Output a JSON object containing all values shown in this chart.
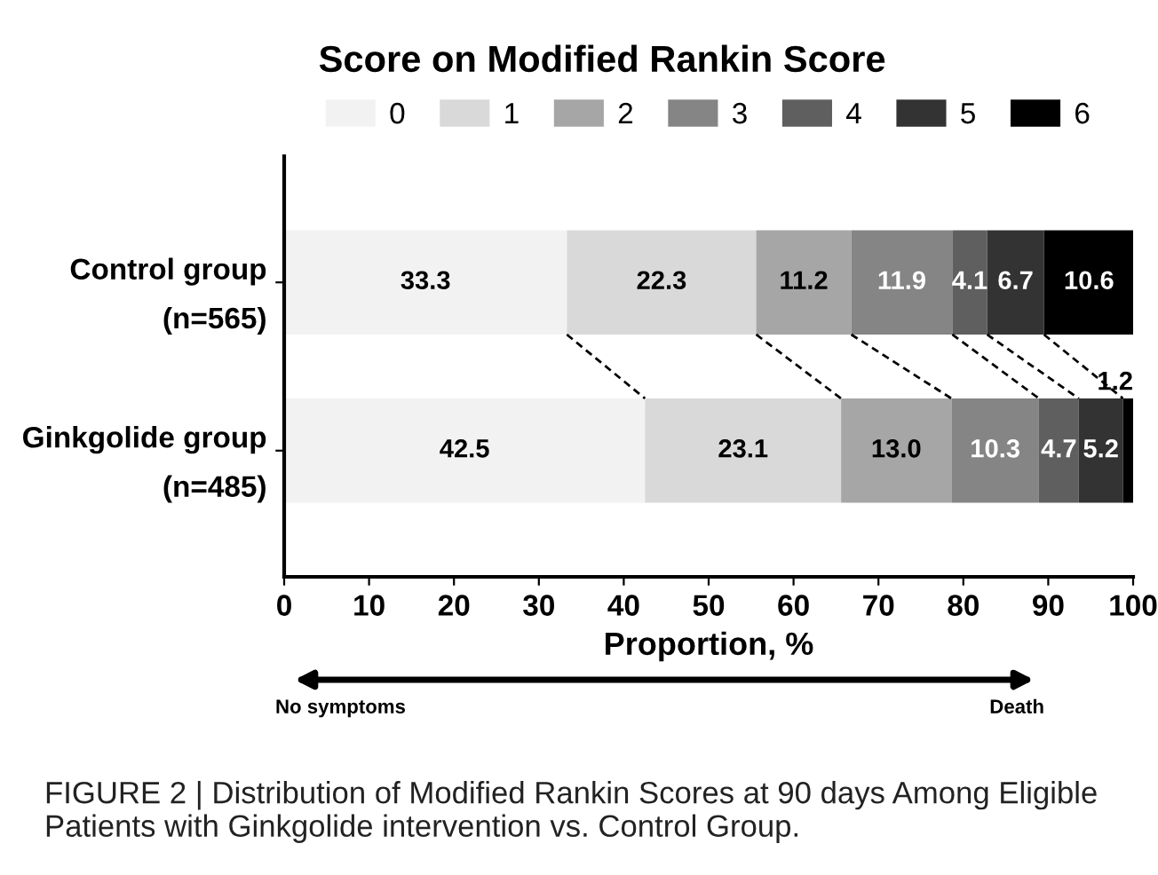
{
  "chart_data": {
    "type": "bar",
    "orientation": "horizontal",
    "stacked": true,
    "title": "Score on Modified Rankin Score",
    "xlabel": "Proportion, %",
    "categories": [
      "Control group\n(n=565)",
      "Ginkgolide group\n(n=485)"
    ],
    "series": [
      {
        "name": "0",
        "color": "#f2f2f2",
        "values": [
          33.3,
          42.5
        ],
        "value_labels": [
          "33.3",
          "42.5"
        ]
      },
      {
        "name": "1",
        "color": "#d9d9d9",
        "values": [
          22.3,
          23.1
        ],
        "value_labels": [
          "22.3",
          "23.1"
        ]
      },
      {
        "name": "2",
        "color": "#a6a6a6",
        "values": [
          11.2,
          13.0
        ],
        "value_labels": [
          "11.2",
          "13.0"
        ]
      },
      {
        "name": "3",
        "color": "#858585",
        "values": [
          11.9,
          10.3
        ],
        "value_labels": [
          "11.9",
          "10.3"
        ]
      },
      {
        "name": "4",
        "color": "#5f5f5f",
        "values": [
          4.1,
          4.7
        ],
        "value_labels": [
          "4.1",
          "4.7"
        ]
      },
      {
        "name": "5",
        "color": "#333333",
        "values": [
          6.7,
          5.2
        ],
        "value_labels": [
          "6.7",
          "5.2"
        ]
      },
      {
        "name": "6",
        "color": "#000000",
        "values": [
          10.6,
          1.2
        ],
        "value_labels": [
          "10.6",
          "1.2"
        ]
      }
    ],
    "xlim": [
      0,
      100
    ],
    "xticks": [
      0,
      10,
      20,
      30,
      40,
      50,
      60,
      70,
      80,
      90,
      100
    ],
    "grid": false,
    "legend": "top",
    "annotations": [
      "No symptoms",
      "Death",
      "FIGURE 2 | Distribution of Modified Rankin Scores at 90 days Among Eligible Patients with Ginkgolide intervention vs. Control Group."
    ]
  }
}
